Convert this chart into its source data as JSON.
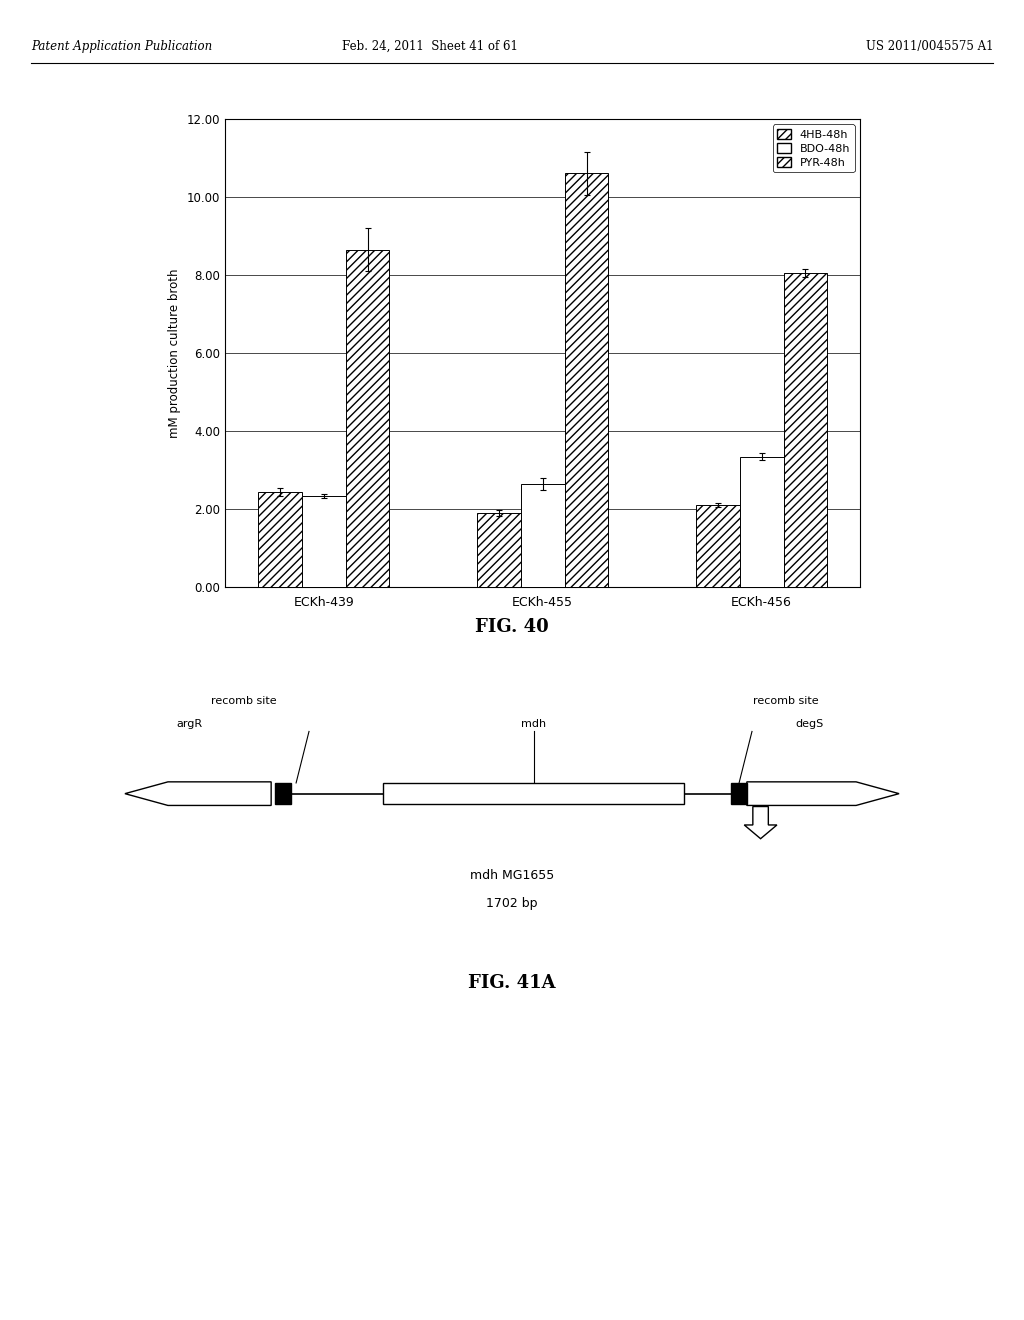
{
  "header_left": "Patent Application Publication",
  "header_mid": "Feb. 24, 2011  Sheet 41 of 61",
  "header_right": "US 2011/0045575 A1",
  "bar_groups": [
    "ECKh-439",
    "ECKh-455",
    "ECKh-456"
  ],
  "series_names": [
    "4HB-48h",
    "BDO-48h",
    "PYR-48h"
  ],
  "bar_values": [
    [
      2.45,
      2.35,
      8.65
    ],
    [
      1.9,
      2.65,
      10.6
    ],
    [
      2.1,
      3.35,
      8.05
    ]
  ],
  "bar_errors": [
    [
      0.1,
      0.05,
      0.55
    ],
    [
      0.08,
      0.15,
      0.55
    ],
    [
      0.05,
      0.1,
      0.1
    ]
  ],
  "ylabel": "mM production culture broth",
  "ylim": [
    0,
    12
  ],
  "yticks": [
    0.0,
    2.0,
    4.0,
    6.0,
    8.0,
    10.0,
    12.0
  ],
  "fig40_title": "FIG. 40",
  "fig41a_title": "FIG. 41A",
  "background_color": "#ffffff",
  "diagram_label_left1": "recomb site",
  "diagram_label_left2": "argR",
  "diagram_label_mid": "mdh",
  "diagram_label_right1": "recomb site",
  "diagram_label_right2": "degS",
  "diagram_caption1": "mdh MG1655",
  "diagram_caption2": "1702 bp"
}
